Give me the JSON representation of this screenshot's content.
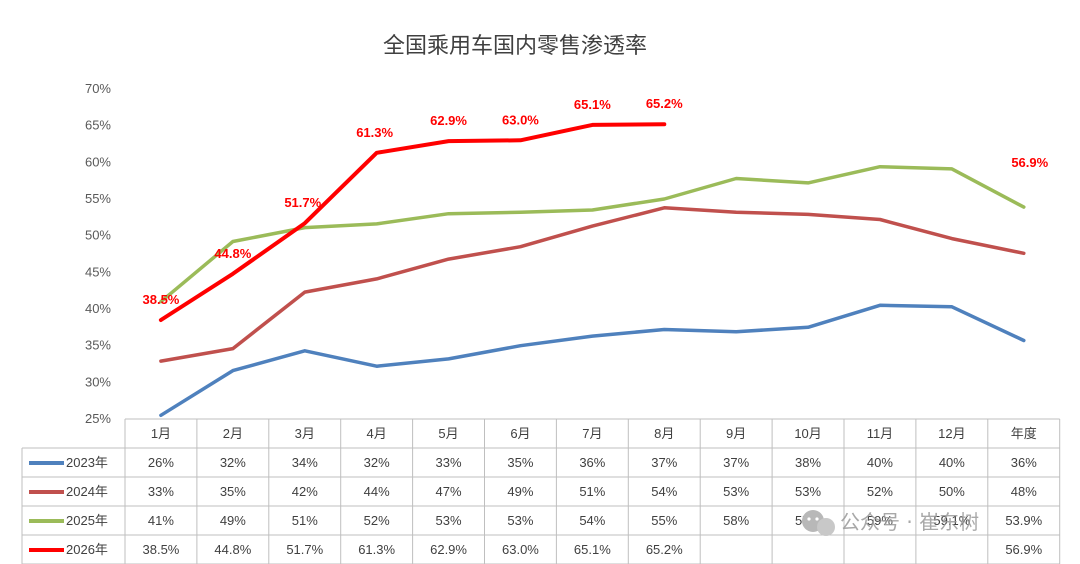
{
  "chart_data": {
    "type": "line",
    "title": "全国乘用车国内零售渗透率",
    "categories": [
      "1月",
      "2月",
      "3月",
      "4月",
      "5月",
      "6月",
      "7月",
      "8月",
      "9月",
      "10月",
      "11月",
      "12月",
      "年度"
    ],
    "y_ticks": [
      "25%",
      "30%",
      "35%",
      "40%",
      "45%",
      "50%",
      "55%",
      "60%",
      "65%",
      "70%"
    ],
    "ylim": [
      25,
      70
    ],
    "grid": false,
    "legend": "bottom-table",
    "series": [
      {
        "name": "2023年",
        "color": "#4f81bd",
        "values": [
          25.5,
          31.6,
          34.3,
          32.2,
          33.2,
          35.0,
          36.3,
          37.2,
          36.9,
          37.5,
          40.5,
          40.3,
          35.7
        ],
        "table": [
          "26%",
          "32%",
          "34%",
          "32%",
          "33%",
          "35%",
          "36%",
          "37%",
          "37%",
          "38%",
          "40%",
          "40%",
          "36%"
        ]
      },
      {
        "name": "2024年",
        "color": "#c0504d",
        "values": [
          32.9,
          34.6,
          42.3,
          44.1,
          46.8,
          48.5,
          51.3,
          53.8,
          53.2,
          52.9,
          52.2,
          49.6,
          47.6
        ],
        "table": [
          "33%",
          "35%",
          "42%",
          "44%",
          "47%",
          "49%",
          "51%",
          "54%",
          "53%",
          "53%",
          "52%",
          "50%",
          "48%"
        ]
      },
      {
        "name": "2025年",
        "color": "#9bbb59",
        "values": [
          41.0,
          49.2,
          51.1,
          51.6,
          53.0,
          53.2,
          53.5,
          55.0,
          57.8,
          57.2,
          59.4,
          59.1,
          53.9
        ],
        "table": [
          "41%",
          "49%",
          "51%",
          "52%",
          "53%",
          "53%",
          "54%",
          "55%",
          "58%",
          "57%",
          "59%",
          "59.1%",
          "53.9%"
        ]
      },
      {
        "name": "2026年",
        "color": "#ff0000",
        "values": [
          38.5,
          44.8,
          51.7,
          61.3,
          62.9,
          63.0,
          65.1,
          65.2,
          null,
          null,
          null,
          null,
          null
        ],
        "table": [
          "38.5%",
          "44.8%",
          "51.7%",
          "61.3%",
          "62.9%",
          "63.0%",
          "65.1%",
          "65.2%",
          "",
          "",
          "",
          "",
          "56.9%"
        ],
        "data_labels": [
          "38.5%",
          "44.8%",
          "51.7%",
          "61.3%",
          "62.9%",
          "63.0%",
          "65.1%",
          "65.2%"
        ],
        "annual_label": "56.9%"
      }
    ]
  },
  "watermark": "公众号 · 崔东树"
}
